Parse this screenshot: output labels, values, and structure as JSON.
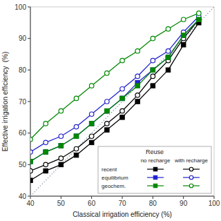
{
  "chart_data": {
    "type": "line",
    "xlabel": "Classical irrigation efficiency (%)",
    "ylabel": "Effective irrigation efficiency  (%)",
    "xlim": [
      40,
      100
    ],
    "ylim": [
      40,
      100
    ],
    "xticks": [
      40,
      50,
      60,
      70,
      80,
      90,
      100
    ],
    "yticks": [
      40,
      50,
      60,
      70,
      80,
      90,
      100
    ],
    "grid": false,
    "x": [
      40,
      45,
      50,
      55,
      60,
      65,
      70,
      75,
      80,
      85,
      90,
      95
    ],
    "series": [
      {
        "color": "#000000",
        "marker": "square",
        "values": [
          45,
          48,
          50,
          53,
          57,
          61,
          65,
          70,
          75,
          80,
          88,
          95
        ]
      },
      {
        "color": "#000000",
        "marker": "open-circle",
        "values": [
          48,
          50,
          52,
          55,
          59,
          63,
          67,
          72,
          78,
          83,
          90,
          96
        ]
      },
      {
        "color": "#2222cc",
        "marker": "square",
        "values": [
          51,
          54,
          56,
          59,
          63,
          67,
          71,
          76,
          80,
          84,
          91,
          96
        ]
      },
      {
        "color": "#2222cc",
        "marker": "open-circle",
        "values": [
          54,
          57,
          59,
          62,
          66,
          70,
          74,
          78,
          83,
          86,
          92,
          97
        ]
      },
      {
        "color": "#008800",
        "marker": "square",
        "values": [
          51,
          54,
          56,
          59,
          63,
          67,
          71,
          75,
          80,
          84,
          91,
          96
        ]
      },
      {
        "color": "#008800",
        "marker": "open-circle",
        "values": [
          58,
          63,
          67,
          71,
          75,
          79,
          83,
          86,
          90,
          93,
          96,
          98
        ]
      }
    ],
    "legend": "lower right",
    "legend_title": "Reuse",
    "legend_groups": [
      {
        "name": "recent",
        "color": "#000000"
      },
      {
        "name": "equilibrium",
        "color": "#2222cc"
      },
      {
        "name": "geochem.",
        "color": "#008800"
      }
    ],
    "legend_markers": [
      {
        "name": "no recharge",
        "marker": "square"
      },
      {
        "name": "with recharge",
        "marker": "open-circle"
      }
    ]
  }
}
